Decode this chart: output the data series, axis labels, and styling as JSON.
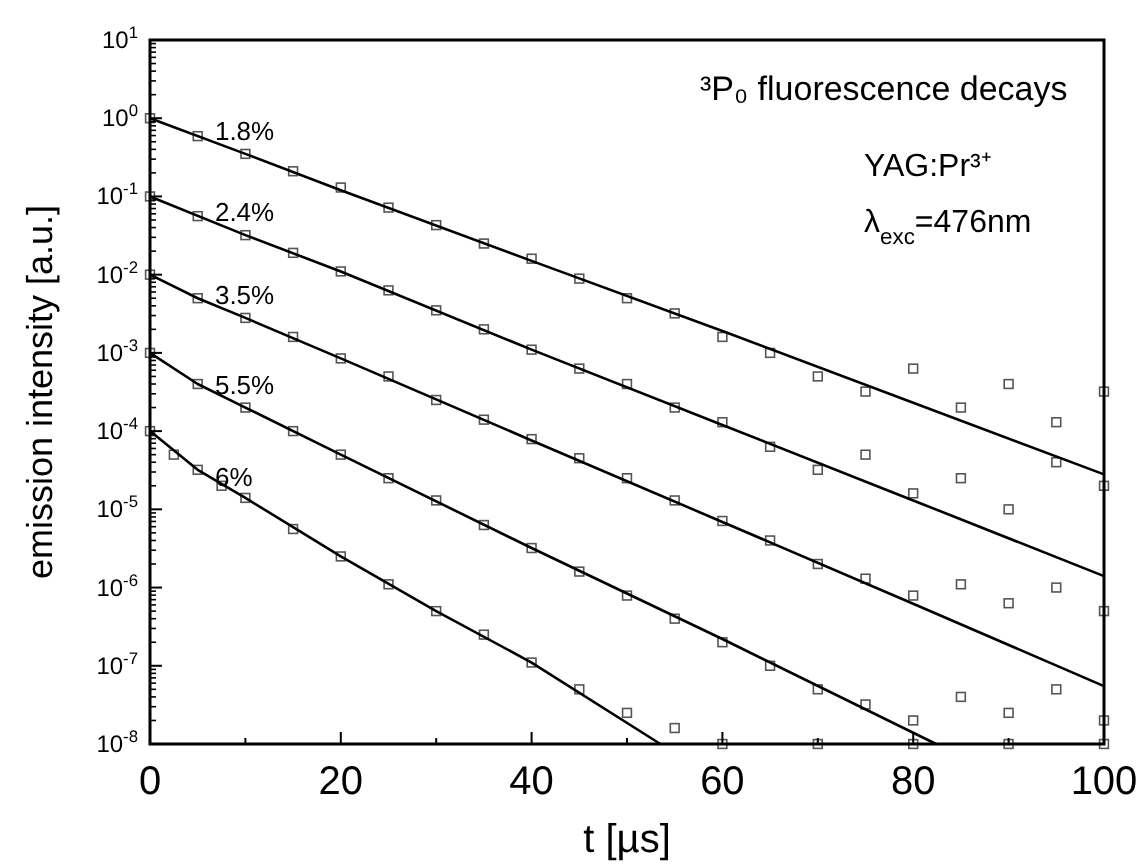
{
  "chart_data": {
    "type": "scatter",
    "xlabel": "t [µs]",
    "ylabel": "emission intensity [a.u.]",
    "log": "y",
    "marker": "square",
    "line_style": "solid",
    "grid": false,
    "xlim": [
      0,
      100
    ],
    "xticks": [
      0,
      {
        "value": 10,
        "label": null
      },
      20,
      {
        "value": 30,
        "label": null
      },
      40,
      {
        "value": 50,
        "label": null
      },
      60,
      {
        "value": 70,
        "label": null
      },
      80,
      {
        "value": 90,
        "label": null
      },
      100
    ],
    "ylim": [
      1e-08,
      10
    ],
    "yticks": [
      {
        "value": 1e-08,
        "label": "10$^{-8}$"
      },
      {
        "value": 1e-07,
        "label": "10$^{-7}$"
      },
      {
        "value": 1e-06,
        "label": "10$^{-6}$"
      },
      {
        "value": 1e-05,
        "label": "10$^{-5}$"
      },
      {
        "value": 0.0001,
        "label": "10$^{-4}$"
      },
      {
        "value": 0.001,
        "label": "10$^{-3}$"
      },
      {
        "value": 0.01,
        "label": "10$^{-2}$"
      },
      {
        "value": 0.1,
        "label": "10$^{-1}$"
      },
      {
        "value": 1,
        "label": "10$^{0}$"
      },
      {
        "value": 10,
        "label": "10$^{1}$"
      }
    ],
    "annotations": [
      "³P₀ fluorescence decays",
      "YAG:Pr³⁺",
      "λ$_{exc}$=476nm"
    ],
    "series": [
      {
        "color": "#555555",
        "x": [
          0,
          5,
          10,
          15,
          20,
          25,
          30,
          35,
          40,
          45,
          50,
          55,
          60,
          65,
          70,
          75,
          80,
          85,
          90,
          95,
          100
        ],
        "values": [
          1,
          0.59,
          0.35,
          0.21,
          0.13,
          0.072,
          0.043,
          0.025,
          0.016,
          0.0089,
          0.005,
          0.0032,
          0.0016,
          0.001,
          0.0005,
          0.00032,
          0.00063,
          0.0002,
          0.0004,
          0.00013,
          0.00032
        ]
      },
      {
        "color": "#555555",
        "x": [
          0,
          5,
          10,
          15,
          20,
          25,
          30,
          35,
          40,
          45,
          50,
          55,
          60,
          65,
          70,
          75,
          80,
          85,
          90,
          95,
          100
        ],
        "values": [
          0.1,
          0.056,
          0.032,
          0.019,
          0.011,
          0.0063,
          0.0035,
          0.002,
          0.0011,
          0.00063,
          0.0004,
          0.0002,
          0.00013,
          6.3e-05,
          3.2e-05,
          5e-05,
          1.6e-05,
          2.5e-05,
          1e-05,
          4e-05,
          2e-05
        ]
      },
      {
        "color": "#555555",
        "x": [
          0,
          5,
          10,
          15,
          20,
          25,
          30,
          35,
          40,
          45,
          50,
          55,
          60,
          65,
          70,
          75,
          80,
          85,
          90,
          95,
          100
        ],
        "values": [
          0.01,
          0.005,
          0.0028,
          0.0016,
          0.00085,
          0.0005,
          0.00025,
          0.00014,
          7.9e-05,
          4.5e-05,
          2.5e-05,
          1.3e-05,
          7.1e-06,
          4e-06,
          2e-06,
          1.3e-06,
          7.9e-07,
          1.1e-06,
          6.3e-07,
          1e-06,
          5e-07
        ]
      },
      {
        "color": "#555555",
        "x": [
          0,
          5,
          10,
          15,
          20,
          25,
          30,
          35,
          40,
          45,
          50,
          55,
          60,
          65,
          70,
          75,
          80,
          85,
          90,
          95,
          100
        ],
        "values": [
          0.001,
          0.0004,
          0.0002,
          0.0001,
          5e-05,
          2.5e-05,
          1.3e-05,
          6.3e-06,
          3.2e-06,
          1.6e-06,
          7.9e-07,
          4e-07,
          2e-07,
          1e-07,
          5e-08,
          3.2e-08,
          2e-08,
          4e-08,
          2.5e-08,
          5e-08,
          2e-08
        ]
      },
      {
        "color": "#555555",
        "x": [
          0,
          2.5,
          5,
          7.5,
          10,
          15,
          20,
          25,
          30,
          35,
          40,
          45,
          50,
          55,
          60,
          70,
          80,
          90,
          100
        ],
        "values": [
          0.0001,
          5e-05,
          3.2e-05,
          2e-05,
          1.4e-05,
          5.6e-06,
          2.5e-06,
          1.1e-06,
          5e-07,
          2.5e-07,
          1.1e-07,
          5e-08,
          2.5e-08,
          1.6e-08,
          1e-08,
          1e-08,
          1e-08,
          1e-08,
          1e-08
        ]
      },
      {
        "type": "line",
        "name": "1.8%",
        "marker": "none",
        "color": "#000000",
        "x": [
          0,
          10,
          20,
          40,
          60,
          80,
          100
        ],
        "values": [
          1,
          0.35,
          0.12,
          0.015,
          0.0019,
          0.00023,
          2.8e-05
        ]
      },
      {
        "type": "line",
        "name": "2.4%",
        "marker": "none",
        "color": "#000000",
        "x": [
          0,
          10,
          20,
          40,
          60,
          80,
          100
        ],
        "values": [
          0.1,
          0.032,
          0.011,
          0.0011,
          0.00012,
          1.3e-05,
          1.4e-06
        ]
      },
      {
        "type": "line",
        "name": "3.5%",
        "marker": "none",
        "color": "#000000",
        "x": [
          0,
          5,
          10,
          20,
          40,
          60,
          80,
          100
        ],
        "values": [
          0.01,
          0.005,
          0.0028,
          0.00085,
          7.6e-05,
          6.9e-06,
          6.2e-07,
          5.5e-08
        ]
      },
      {
        "type": "line",
        "name": "5.5%",
        "marker": "none",
        "color": "#000000",
        "x": [
          0,
          5,
          10,
          20,
          40,
          60,
          82.4
        ],
        "values": [
          0.001,
          0.0004,
          0.0002,
          5e-05,
          3.2e-06,
          2.2e-07,
          1e-08
        ]
      },
      {
        "type": "line",
        "name": "6%",
        "marker": "none",
        "color": "#000000",
        "x": [
          0,
          5,
          10,
          20,
          30,
          40,
          53.5
        ],
        "values": [
          0.0001,
          3.2e-05,
          1.4e-05,
          2.5e-06,
          5e-07,
          1.1e-07,
          1e-08
        ]
      }
    ]
  }
}
